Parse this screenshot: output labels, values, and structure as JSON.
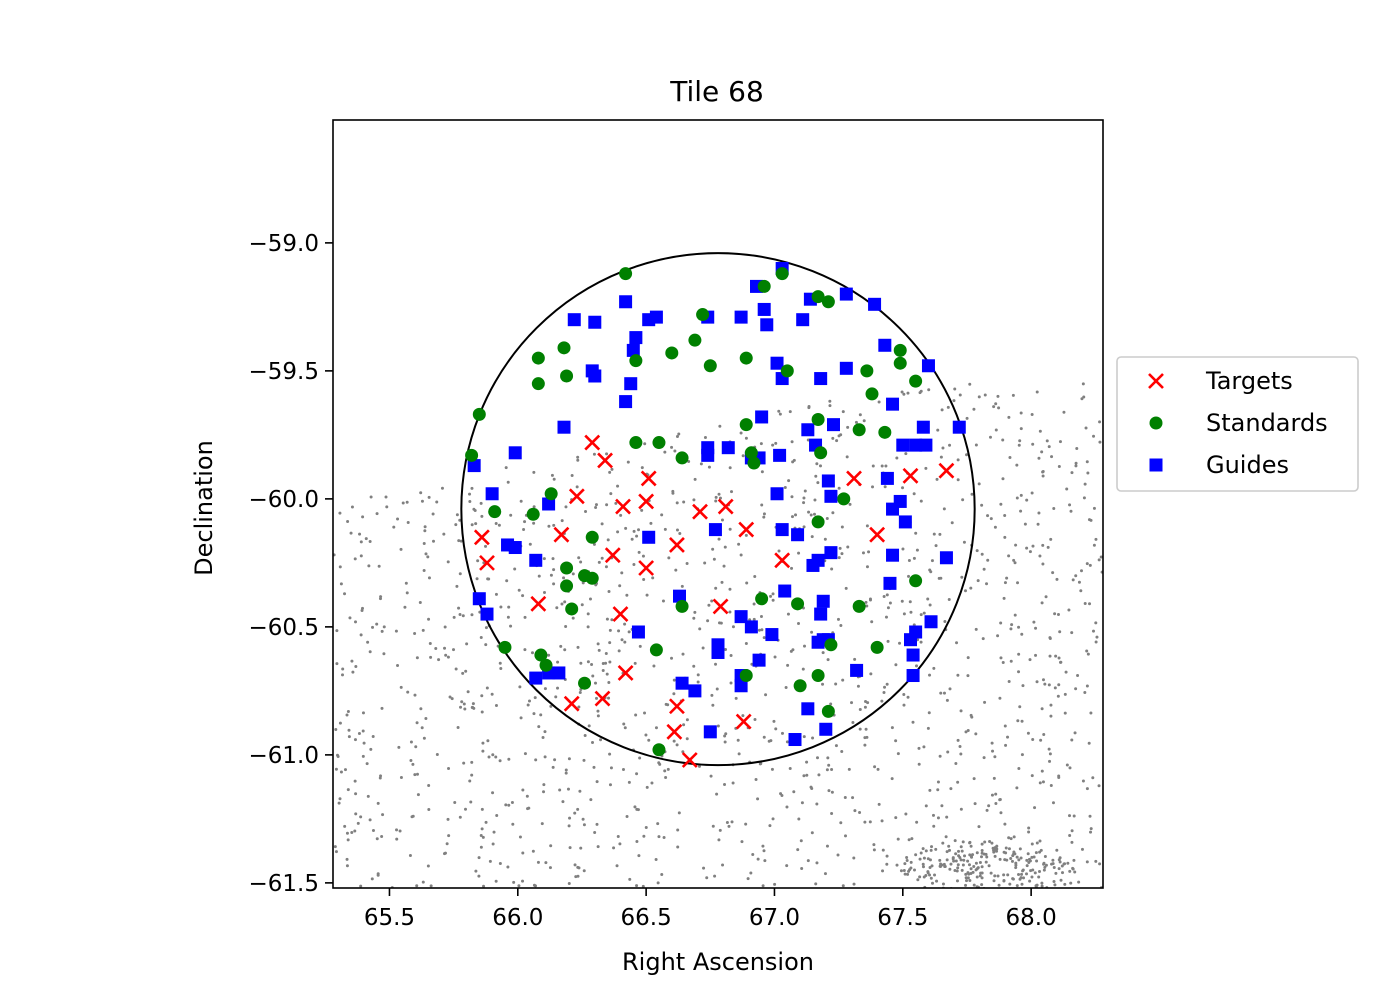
{
  "chart_data": {
    "type": "scatter",
    "title": "Tile 68",
    "xlabel": "Right Ascension",
    "ylabel": "Declination",
    "xlim": [
      65.28,
      68.28
    ],
    "ylim": [
      -61.52,
      -58.52
    ],
    "xticks": [
      {
        "value": 65.5,
        "label": "65.5"
      },
      {
        "value": 66.0,
        "label": "66.0"
      },
      {
        "value": 66.5,
        "label": "66.5"
      },
      {
        "value": 67.0,
        "label": "67.0"
      },
      {
        "value": 67.5,
        "label": "67.5"
      },
      {
        "value": 68.0,
        "label": "68.0"
      }
    ],
    "yticks": [
      {
        "value": -59.0,
        "label": "−59.0"
      },
      {
        "value": -59.5,
        "label": "−59.5"
      },
      {
        "value": -60.0,
        "label": "−60.0"
      },
      {
        "value": -60.5,
        "label": "−60.5"
      },
      {
        "value": -61.0,
        "label": "−61.0"
      },
      {
        "value": -61.5,
        "label": "−61.5"
      }
    ],
    "grid": false,
    "legend_position": "right, outside",
    "tile_circle": {
      "center_ra": 66.78,
      "center_dec": -60.04,
      "radius_deg": 1.0
    },
    "series": [
      {
        "name": "Targets",
        "marker": "x",
        "color": "#ff0000",
        "points": [
          [
            66.29,
            -59.78
          ],
          [
            66.34,
            -59.85
          ],
          [
            66.51,
            -59.92
          ],
          [
            66.23,
            -59.99
          ],
          [
            66.5,
            -60.01
          ],
          [
            66.41,
            -60.03
          ],
          [
            66.71,
            -60.05
          ],
          [
            66.81,
            -60.03
          ],
          [
            66.89,
            -60.12
          ],
          [
            66.17,
            -60.14
          ],
          [
            65.86,
            -60.15
          ],
          [
            65.88,
            -60.25
          ],
          [
            66.37,
            -60.22
          ],
          [
            66.5,
            -60.27
          ],
          [
            66.62,
            -60.18
          ],
          [
            67.03,
            -60.24
          ],
          [
            67.31,
            -59.92
          ],
          [
            67.53,
            -59.91
          ],
          [
            67.67,
            -59.89
          ],
          [
            67.4,
            -60.14
          ],
          [
            66.08,
            -60.41
          ],
          [
            66.4,
            -60.45
          ],
          [
            66.79,
            -60.42
          ],
          [
            66.42,
            -60.68
          ],
          [
            66.33,
            -60.78
          ],
          [
            66.21,
            -60.8
          ],
          [
            66.62,
            -60.81
          ],
          [
            66.61,
            -60.91
          ],
          [
            66.88,
            -60.87
          ],
          [
            66.67,
            -61.02
          ]
        ]
      },
      {
        "name": "Standards",
        "marker": "circle",
        "color": "#008000",
        "points": [
          [
            65.85,
            -59.67
          ],
          [
            65.82,
            -59.83
          ],
          [
            66.08,
            -59.45
          ],
          [
            66.08,
            -59.55
          ],
          [
            66.18,
            -59.41
          ],
          [
            66.19,
            -59.52
          ],
          [
            66.42,
            -59.12
          ],
          [
            66.46,
            -59.46
          ],
          [
            66.6,
            -59.43
          ],
          [
            66.72,
            -59.28
          ],
          [
            66.69,
            -59.38
          ],
          [
            66.75,
            -59.48
          ],
          [
            66.89,
            -59.45
          ],
          [
            66.96,
            -59.17
          ],
          [
            67.03,
            -59.12
          ],
          [
            67.05,
            -59.5
          ],
          [
            67.17,
            -59.21
          ],
          [
            67.21,
            -59.23
          ],
          [
            67.36,
            -59.5
          ],
          [
            67.38,
            -59.59
          ],
          [
            67.49,
            -59.42
          ],
          [
            67.49,
            -59.47
          ],
          [
            67.55,
            -59.54
          ],
          [
            66.89,
            -59.71
          ],
          [
            66.91,
            -59.82
          ],
          [
            66.92,
            -59.86
          ],
          [
            66.46,
            -59.78
          ],
          [
            66.55,
            -59.78
          ],
          [
            66.64,
            -59.84
          ],
          [
            67.17,
            -59.69
          ],
          [
            67.18,
            -59.82
          ],
          [
            67.33,
            -59.73
          ],
          [
            67.43,
            -59.74
          ],
          [
            67.27,
            -60.0
          ],
          [
            67.17,
            -60.09
          ],
          [
            65.91,
            -60.05
          ],
          [
            66.06,
            -60.06
          ],
          [
            66.13,
            -59.98
          ],
          [
            66.29,
            -60.15
          ],
          [
            66.19,
            -60.27
          ],
          [
            66.19,
            -60.34
          ],
          [
            66.21,
            -60.43
          ],
          [
            66.26,
            -60.3
          ],
          [
            66.29,
            -60.31
          ],
          [
            66.64,
            -60.42
          ],
          [
            66.95,
            -60.39
          ],
          [
            67.09,
            -60.41
          ],
          [
            67.33,
            -60.42
          ],
          [
            67.4,
            -60.58
          ],
          [
            67.55,
            -60.32
          ],
          [
            65.95,
            -60.58
          ],
          [
            66.09,
            -60.61
          ],
          [
            66.11,
            -60.65
          ],
          [
            66.26,
            -60.72
          ],
          [
            66.54,
            -60.59
          ],
          [
            66.89,
            -60.69
          ],
          [
            67.1,
            -60.73
          ],
          [
            67.17,
            -60.69
          ],
          [
            67.22,
            -60.57
          ],
          [
            67.21,
            -60.83
          ],
          [
            66.55,
            -60.98
          ]
        ]
      },
      {
        "name": "Guides",
        "marker": "square",
        "color": "#0000ff",
        "points": [
          [
            65.83,
            -59.87
          ],
          [
            65.9,
            -59.98
          ],
          [
            65.99,
            -59.82
          ],
          [
            66.18,
            -59.72
          ],
          [
            66.12,
            -60.02
          ],
          [
            65.96,
            -60.18
          ],
          [
            65.99,
            -60.19
          ],
          [
            66.07,
            -60.24
          ],
          [
            65.85,
            -60.39
          ],
          [
            65.88,
            -60.45
          ],
          [
            66.07,
            -60.7
          ],
          [
            66.12,
            -60.68
          ],
          [
            66.16,
            -60.68
          ],
          [
            66.22,
            -59.3
          ],
          [
            66.3,
            -59.31
          ],
          [
            66.29,
            -59.5
          ],
          [
            66.3,
            -59.52
          ],
          [
            66.42,
            -59.23
          ],
          [
            66.45,
            -59.42
          ],
          [
            66.46,
            -59.37
          ],
          [
            66.44,
            -59.55
          ],
          [
            66.42,
            -59.62
          ],
          [
            66.51,
            -59.3
          ],
          [
            66.54,
            -59.29
          ],
          [
            66.74,
            -59.29
          ],
          [
            66.87,
            -59.29
          ],
          [
            66.93,
            -59.17
          ],
          [
            66.96,
            -59.26
          ],
          [
            66.97,
            -59.32
          ],
          [
            67.03,
            -59.1
          ],
          [
            67.11,
            -59.3
          ],
          [
            67.14,
            -59.22
          ],
          [
            67.28,
            -59.2
          ],
          [
            67.39,
            -59.24
          ],
          [
            67.43,
            -59.4
          ],
          [
            67.46,
            -59.63
          ],
          [
            67.01,
            -59.47
          ],
          [
            67.03,
            -59.53
          ],
          [
            67.18,
            -59.53
          ],
          [
            67.28,
            -59.49
          ],
          [
            67.6,
            -59.48
          ],
          [
            67.72,
            -59.72
          ],
          [
            66.95,
            -59.68
          ],
          [
            66.74,
            -59.8
          ],
          [
            66.74,
            -59.83
          ],
          [
            66.82,
            -59.8
          ],
          [
            66.91,
            -59.84
          ],
          [
            66.94,
            -59.84
          ],
          [
            67.02,
            -59.83
          ],
          [
            67.13,
            -59.73
          ],
          [
            67.16,
            -59.79
          ],
          [
            67.23,
            -59.71
          ],
          [
            67.21,
            -59.93
          ],
          [
            67.22,
            -59.99
          ],
          [
            67.44,
            -59.92
          ],
          [
            67.46,
            -60.04
          ],
          [
            67.49,
            -60.01
          ],
          [
            67.5,
            -59.79
          ],
          [
            67.55,
            -59.79
          ],
          [
            67.58,
            -59.72
          ],
          [
            67.59,
            -59.79
          ],
          [
            67.51,
            -60.09
          ],
          [
            67.67,
            -60.23
          ],
          [
            67.01,
            -59.98
          ],
          [
            66.51,
            -60.15
          ],
          [
            66.77,
            -60.12
          ],
          [
            67.03,
            -60.12
          ],
          [
            67.09,
            -60.14
          ],
          [
            67.15,
            -60.26
          ],
          [
            67.17,
            -60.24
          ],
          [
            67.22,
            -60.21
          ],
          [
            67.46,
            -60.22
          ],
          [
            67.45,
            -60.33
          ],
          [
            66.63,
            -60.38
          ],
          [
            66.47,
            -60.52
          ],
          [
            67.04,
            -60.36
          ],
          [
            67.19,
            -60.4
          ],
          [
            67.18,
            -60.45
          ],
          [
            66.78,
            -60.57
          ],
          [
            66.78,
            -60.6
          ],
          [
            66.87,
            -60.46
          ],
          [
            66.91,
            -60.5
          ],
          [
            66.99,
            -60.53
          ],
          [
            67.17,
            -60.56
          ],
          [
            67.19,
            -60.55
          ],
          [
            67.21,
            -60.55
          ],
          [
            67.53,
            -60.55
          ],
          [
            67.55,
            -60.52
          ],
          [
            67.61,
            -60.48
          ],
          [
            67.54,
            -60.61
          ],
          [
            67.54,
            -60.69
          ],
          [
            67.32,
            -60.67
          ],
          [
            66.64,
            -60.72
          ],
          [
            66.69,
            -60.75
          ],
          [
            66.87,
            -60.69
          ],
          [
            66.87,
            -60.73
          ],
          [
            66.94,
            -60.63
          ],
          [
            67.13,
            -60.82
          ],
          [
            66.75,
            -60.91
          ],
          [
            67.08,
            -60.94
          ],
          [
            67.2,
            -60.9
          ]
        ]
      }
    ],
    "background_stars": {
      "color": "#808080",
      "dense_clump_center": [
        67.84,
        -61.46
      ],
      "n_field": 1500,
      "n_clump": 260
    }
  }
}
